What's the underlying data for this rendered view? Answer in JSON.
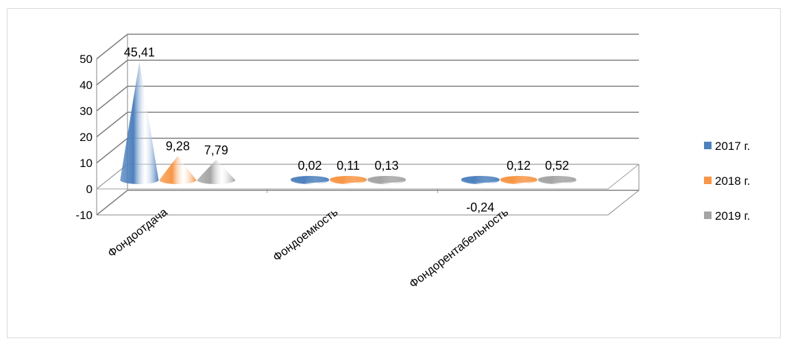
{
  "chart_data": {
    "type": "bar",
    "bar_shape": "cone-3d",
    "categories": [
      "Фондоотдача",
      "Фондоемкость",
      "Фондорентабельность"
    ],
    "series": [
      {
        "name": "2017 г.",
        "values": [
          45.41,
          0.02,
          -0.24
        ],
        "labels": [
          "45,41",
          "0,02",
          "-0,24"
        ],
        "color": "#4f81bd"
      },
      {
        "name": "2018 г.",
        "values": [
          9.28,
          0.11,
          0.12
        ],
        "labels": [
          "9,28",
          "0,11",
          "0,12"
        ],
        "color": "#f79646"
      },
      {
        "name": "2019 г.",
        "values": [
          7.79,
          0.13,
          0.52
        ],
        "labels": [
          "7,79",
          "0,13",
          "0,52"
        ],
        "color": "#a5a5a5"
      }
    ],
    "y_ticks": [
      "-10",
      "0",
      "10",
      "20",
      "30",
      "40",
      "50"
    ],
    "ylim": [
      -10,
      50
    ],
    "grid": true,
    "legend_position": "right",
    "title": "",
    "xlabel": "",
    "ylabel": ""
  }
}
